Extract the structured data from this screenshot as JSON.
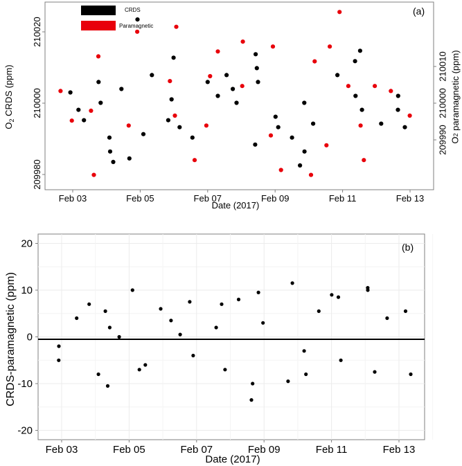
{
  "figure": {
    "x_tick_labels": [
      "Feb 03",
      "Feb 05",
      "Feb 07",
      "Feb 09",
      "Feb 11",
      "Feb 13"
    ],
    "x_axis_label": "Date (2017)"
  },
  "chart_data": [
    {
      "type": "scatter",
      "panel_label": "(a)",
      "xlabel": "Date (2017)",
      "x_ticks": [
        "Feb 03",
        "Feb 05",
        "Feb 07",
        "Feb 09",
        "Feb 11",
        "Feb 13"
      ],
      "xlim": [
        "2017-02-02",
        "2017-02-14"
      ],
      "ylabel_left": "O2 CRDS (ppm)",
      "ylabel_right": "O2 paramagnetic (ppm)",
      "ylim_left": [
        209977,
        210031
      ],
      "ylim_right": [
        209983,
        210021
      ],
      "y_ticks_left": [
        "209980",
        "210000",
        "210020"
      ],
      "y_ticks_right": [
        "209990",
        "210000",
        "210010"
      ],
      "grid": false,
      "legend_position": "top-left",
      "legend": [
        {
          "name": "CRDS",
          "color": "#000000"
        },
        {
          "name": "Paramagnetic",
          "color": "#e8000b"
        }
      ],
      "series": [
        {
          "name": "CRDS",
          "color": "#000000",
          "axis": "left",
          "points": [
            [
              "2017-02-02",
              210000
            ],
            [
              "2017-02-02",
              210005
            ],
            [
              "2017-02-02",
              209997
            ],
            [
              "2017-02-03",
              210008
            ],
            [
              "2017-02-03",
              210002
            ],
            [
              "2017-02-03",
              209992
            ],
            [
              "2017-02-03",
              209985
            ],
            [
              "2017-02-03",
              209988
            ],
            [
              "2017-02-04",
              210006
            ],
            [
              "2017-02-04",
              210026
            ],
            [
              "2017-02-04",
              209993
            ],
            [
              "2017-02-04",
              209986
            ],
            [
              "2017-02-05",
              210015
            ],
            [
              "2017-02-05",
              210010
            ],
            [
              "2017-02-05",
              210003
            ],
            [
              "2017-02-05",
              209997
            ],
            [
              "2017-02-06",
              209995
            ],
            [
              "2017-02-06",
              210008
            ],
            [
              "2017-02-06",
              209992
            ],
            [
              "2017-02-07",
              210002
            ],
            [
              "2017-02-07",
              210006
            ],
            [
              "2017-02-07",
              210010
            ],
            [
              "2017-02-07",
              210004
            ],
            [
              "2017-02-08",
              210012
            ],
            [
              "2017-02-08",
              210008
            ],
            [
              "2017-02-08",
              210016
            ],
            [
              "2017-02-08",
              209990
            ],
            [
              "2017-02-09",
              209995
            ],
            [
              "2017-02-09",
              209998
            ],
            [
              "2017-02-09",
              209992
            ],
            [
              "2017-02-10",
              209996
            ],
            [
              "2017-02-10",
              209988
            ],
            [
              "2017-02-10",
              209984
            ],
            [
              "2017-02-10",
              210002
            ],
            [
              "2017-02-11",
              210004
            ],
            [
              "2017-02-11",
              210014
            ],
            [
              "2017-02-11",
              210010
            ],
            [
              "2017-02-12",
              210000
            ],
            [
              "2017-02-12",
              210017
            ],
            [
              "2017-02-12",
              209996
            ],
            [
              "2017-02-13",
              209995
            ],
            [
              "2017-02-13",
              210000
            ],
            [
              "2017-02-13",
              210004
            ]
          ]
        },
        {
          "name": "Paramagnetic",
          "color": "#e8000b",
          "axis": "right",
          "points": [
            [
              "2017-02-02",
              210003
            ],
            [
              "2017-02-02",
              209997
            ],
            [
              "2017-02-03",
              210010
            ],
            [
              "2017-02-03",
              209999
            ],
            [
              "2017-02-03",
              209986
            ],
            [
              "2017-02-04",
              210015
            ],
            [
              "2017-02-04",
              209996
            ],
            [
              "2017-02-05",
              210016
            ],
            [
              "2017-02-05",
              210005
            ],
            [
              "2017-02-05",
              209998
            ],
            [
              "2017-02-06",
              209996
            ],
            [
              "2017-02-06",
              209989
            ],
            [
              "2017-02-07",
              210006
            ],
            [
              "2017-02-07",
              210011
            ],
            [
              "2017-02-08",
              210004
            ],
            [
              "2017-02-08",
              210013
            ],
            [
              "2017-02-09",
              209994
            ],
            [
              "2017-02-09",
              209987
            ],
            [
              "2017-02-09",
              210012
            ],
            [
              "2017-02-10",
              209992
            ],
            [
              "2017-02-10",
              209986
            ],
            [
              "2017-02-10",
              210009
            ],
            [
              "2017-02-11",
              210004
            ],
            [
              "2017-02-11",
              210019
            ],
            [
              "2017-02-11",
              210012
            ],
            [
              "2017-02-12",
              209996
            ],
            [
              "2017-02-12",
              210004
            ],
            [
              "2017-02-12",
              209989
            ],
            [
              "2017-02-13",
              209998
            ],
            [
              "2017-02-13",
              210003
            ]
          ]
        }
      ]
    },
    {
      "type": "scatter",
      "panel_label": "(b)",
      "xlabel": "Date (2017)",
      "ylabel": "CRDS-paramagnetic (ppm)",
      "x_ticks": [
        "Feb 03",
        "Feb 05",
        "Feb 07",
        "Feb 09",
        "Feb 11",
        "Feb 13"
      ],
      "xlim": [
        "2017-02-02",
        "2017-02-14"
      ],
      "ylim": [
        -22,
        22
      ],
      "y_ticks": [
        "-20",
        "-10",
        "0",
        "10",
        "20"
      ],
      "grid": true,
      "reference_line_y": 0,
      "series": [
        {
          "name": "",
          "color": "#000000",
          "points": [
            [
              "2017-02-02",
              4
            ],
            [
              "2017-02-02",
              -2
            ],
            [
              "2017-02-02",
              -5
            ],
            [
              "2017-02-03",
              -8
            ],
            [
              "2017-02-03",
              -10.5
            ],
            [
              "2017-02-03",
              7
            ],
            [
              "2017-02-03",
              5.5
            ],
            [
              "2017-02-03",
              2
            ],
            [
              "2017-02-04",
              10
            ],
            [
              "2017-02-04",
              -7
            ],
            [
              "2017-02-04",
              0
            ],
            [
              "2017-02-05",
              6
            ],
            [
              "2017-02-05",
              -6
            ],
            [
              "2017-02-05",
              3.5
            ],
            [
              "2017-02-06",
              7.5
            ],
            [
              "2017-02-06",
              -4
            ],
            [
              "2017-02-06",
              0.5
            ],
            [
              "2017-02-07",
              7
            ],
            [
              "2017-02-07",
              -7
            ],
            [
              "2017-02-07",
              2
            ],
            [
              "2017-02-08",
              -13.5
            ],
            [
              "2017-02-08",
              -10
            ],
            [
              "2017-02-08",
              8
            ],
            [
              "2017-02-08",
              9.5
            ],
            [
              "2017-02-09",
              11.5
            ],
            [
              "2017-02-09",
              -9.5
            ],
            [
              "2017-02-09",
              3
            ],
            [
              "2017-02-10",
              -8
            ],
            [
              "2017-02-10",
              -3
            ],
            [
              "2017-02-10",
              5.5
            ],
            [
              "2017-02-11",
              9
            ],
            [
              "2017-02-11",
              8.5
            ],
            [
              "2017-02-11",
              -5
            ],
            [
              "2017-02-12",
              10.5
            ],
            [
              "2017-02-12",
              10
            ],
            [
              "2017-02-12",
              -7.5
            ],
            [
              "2017-02-13",
              -8
            ],
            [
              "2017-02-13",
              4
            ],
            [
              "2017-02-13",
              5.5
            ]
          ]
        }
      ]
    }
  ]
}
